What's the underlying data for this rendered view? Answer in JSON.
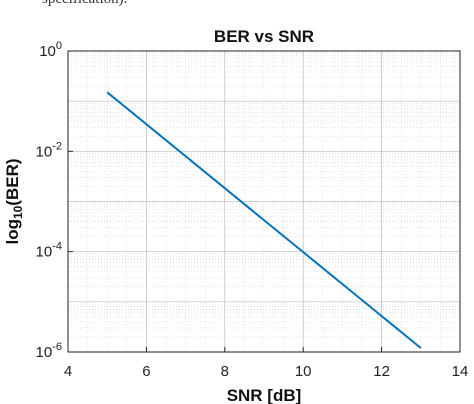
{
  "top_text": "specification).",
  "chart_data": {
    "type": "line",
    "title": "BER vs SNR",
    "xlabel": "SNR [dB]",
    "ylabel": {
      "prefix": "log",
      "subscript": "10",
      "suffix": "(BER)"
    },
    "xlim": [
      4,
      14
    ],
    "ylim": [
      1e-06,
      1
    ],
    "yscale": "log",
    "xticks": [
      4,
      6,
      8,
      10,
      12,
      14
    ],
    "yticks": [
      {
        "base": "10",
        "exp": "0",
        "value": 1
      },
      {
        "base": "10",
        "exp": "-2",
        "value": 0.01
      },
      {
        "base": "10",
        "exp": "-4",
        "value": 0.0001
      },
      {
        "base": "10",
        "exp": "-6",
        "value": 1e-06
      }
    ],
    "grid": true,
    "minor_grid": true,
    "series": [
      {
        "color": "#0072BD",
        "x": [
          5,
          13
        ],
        "y": [
          0.15,
          1.2e-06
        ]
      }
    ]
  }
}
